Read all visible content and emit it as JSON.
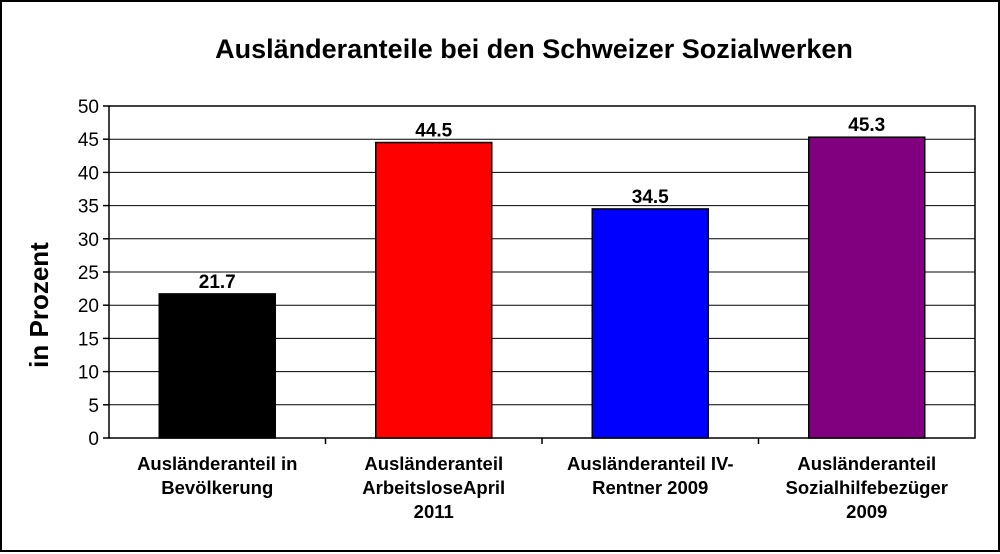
{
  "chart_data": {
    "type": "bar",
    "title": "Ausländeranteile bei den Schweizer Sozialwerken",
    "ylabel": "in Prozent",
    "xlabel": "",
    "ylim": [
      0,
      50
    ],
    "yticks": [
      0,
      5,
      10,
      15,
      20,
      25,
      30,
      35,
      40,
      45,
      50
    ],
    "grid": true,
    "legend": "none",
    "categories": [
      [
        "Ausländeranteil in",
        "Bevölkerung"
      ],
      [
        "Ausländeranteil",
        "ArbeitsloseApril",
        "2011"
      ],
      [
        "Ausländeranteil IV-",
        "Rentner 2009"
      ],
      [
        "Ausländeranteil",
        "Sozialhilfebezüger",
        "2009"
      ]
    ],
    "values": [
      21.7,
      44.5,
      34.5,
      45.3
    ],
    "value_labels": [
      "21.7",
      "44.5",
      "34.5",
      "45.3"
    ],
    "colors": [
      "#000000",
      "#ff0000",
      "#0000ff",
      "#800080"
    ]
  }
}
